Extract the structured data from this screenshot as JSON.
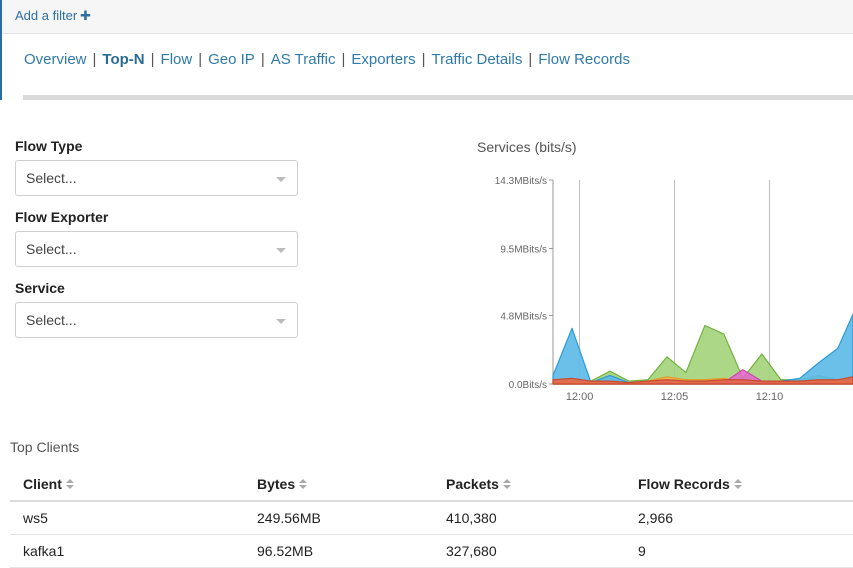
{
  "filterbar": {
    "add_filter_label": "Add a filter",
    "add_icon": "plus-icon"
  },
  "tabs": [
    {
      "label": "Overview",
      "active": false
    },
    {
      "label": "Top-N",
      "active": true
    },
    {
      "label": "Flow",
      "active": false
    },
    {
      "label": "Geo IP",
      "active": false
    },
    {
      "label": "AS Traffic",
      "active": false
    },
    {
      "label": "Exporters",
      "active": false
    },
    {
      "label": "Traffic Details",
      "active": false
    },
    {
      "label": "Flow Records",
      "active": false
    }
  ],
  "filters": {
    "flow_type": {
      "label": "Flow Type",
      "value": "Select..."
    },
    "flow_exporter": {
      "label": "Flow Exporter",
      "value": "Select..."
    },
    "service": {
      "label": "Service",
      "value": "Select..."
    }
  },
  "chart": {
    "title": "Services (bits/s)"
  },
  "chart_data": {
    "type": "area",
    "title": "Services (bits/s)",
    "xlabel": "",
    "ylabel": "",
    "y_ticks": [
      "0.0Bits/s",
      "4.8MBits/s",
      "9.5MBits/s",
      "14.3MBits/s"
    ],
    "y_tick_values": [
      0,
      4.8,
      9.5,
      14.3
    ],
    "ylim": [
      0,
      14.3
    ],
    "y_unit": "MBits/s",
    "x_ticks": [
      "12:00",
      "12:05",
      "12:10"
    ],
    "x_tick_values": [
      720,
      725,
      730
    ],
    "x_unit": "minutes since midnight",
    "xlim": [
      718.6,
      734.4
    ],
    "grid": true,
    "series": [
      {
        "color": "#a3d37a",
        "stroke": "#6fb33e",
        "x": [
          718.6,
          719.6,
          720.6,
          721.6,
          722.6,
          723.6,
          724.6,
          725.6,
          726.6,
          727.6,
          728.6,
          729.6,
          730.6,
          731.6,
          732.6,
          733.6,
          734.4
        ],
        "values": [
          0.1,
          0.3,
          0.2,
          0.9,
          0.2,
          0.3,
          1.9,
          0.8,
          4.1,
          3.5,
          0.4,
          2.1,
          0.3,
          0.3,
          0.6,
          0.3,
          0.4
        ]
      },
      {
        "color": "#5bb9e8",
        "stroke": "#2a9bd6",
        "x": [
          718.6,
          719.6,
          720.6,
          721.6,
          722.6,
          723.6,
          724.6,
          725.6,
          726.6,
          727.6,
          728.6,
          729.6,
          730.6,
          731.6,
          732.6,
          733.6,
          734.4
        ],
        "values": [
          0.6,
          3.9,
          0.1,
          0.6,
          0.1,
          0.2,
          0.3,
          0.3,
          0.2,
          0.2,
          0.2,
          0.2,
          0.2,
          0.4,
          1.5,
          2.5,
          4.9
        ]
      },
      {
        "color": "#f7b24a",
        "stroke": "#e39a2a",
        "x": [
          718.6,
          719.6,
          720.6,
          721.6,
          722.6,
          723.6,
          724.6,
          725.6,
          726.6,
          727.6,
          728.6,
          729.6,
          730.6,
          731.6,
          732.6,
          733.6,
          734.4
        ],
        "values": [
          0.1,
          0.2,
          0.1,
          0.1,
          0.1,
          0.2,
          0.5,
          0.3,
          0.3,
          0.4,
          0.2,
          0.1,
          0.1,
          0.1,
          0.2,
          0.2,
          0.2
        ]
      },
      {
        "color": "#e36aca",
        "stroke": "#c945ae",
        "x": [
          718.6,
          719.6,
          720.6,
          721.6,
          722.6,
          723.6,
          724.6,
          725.6,
          726.6,
          727.6,
          728.6,
          729.6,
          730.6,
          731.6,
          732.6,
          733.6,
          734.4
        ],
        "values": [
          0.0,
          0.0,
          0.0,
          0.0,
          0.0,
          0.0,
          0.1,
          0.0,
          0.0,
          0.1,
          1.0,
          0.2,
          0.0,
          0.0,
          0.1,
          0.0,
          0.0
        ]
      },
      {
        "color": "#e2664a",
        "stroke": "#c94a30",
        "x": [
          718.6,
          719.6,
          720.6,
          721.6,
          722.6,
          723.6,
          724.6,
          725.6,
          726.6,
          727.6,
          728.6,
          729.6,
          730.6,
          731.6,
          732.6,
          733.6,
          734.4
        ],
        "values": [
          0.3,
          0.4,
          0.2,
          0.2,
          0.1,
          0.2,
          0.3,
          0.2,
          0.2,
          0.3,
          0.3,
          0.2,
          0.2,
          0.2,
          0.3,
          0.3,
          0.5
        ]
      }
    ]
  },
  "top_clients": {
    "title": "Top Clients",
    "columns": [
      "Client",
      "Bytes",
      "Packets",
      "Flow Records"
    ],
    "rows": [
      [
        "ws5",
        "249.56MB",
        "410,380",
        "2,966"
      ],
      [
        "kafka1",
        "96.52MB",
        "327,680",
        "9"
      ]
    ]
  }
}
